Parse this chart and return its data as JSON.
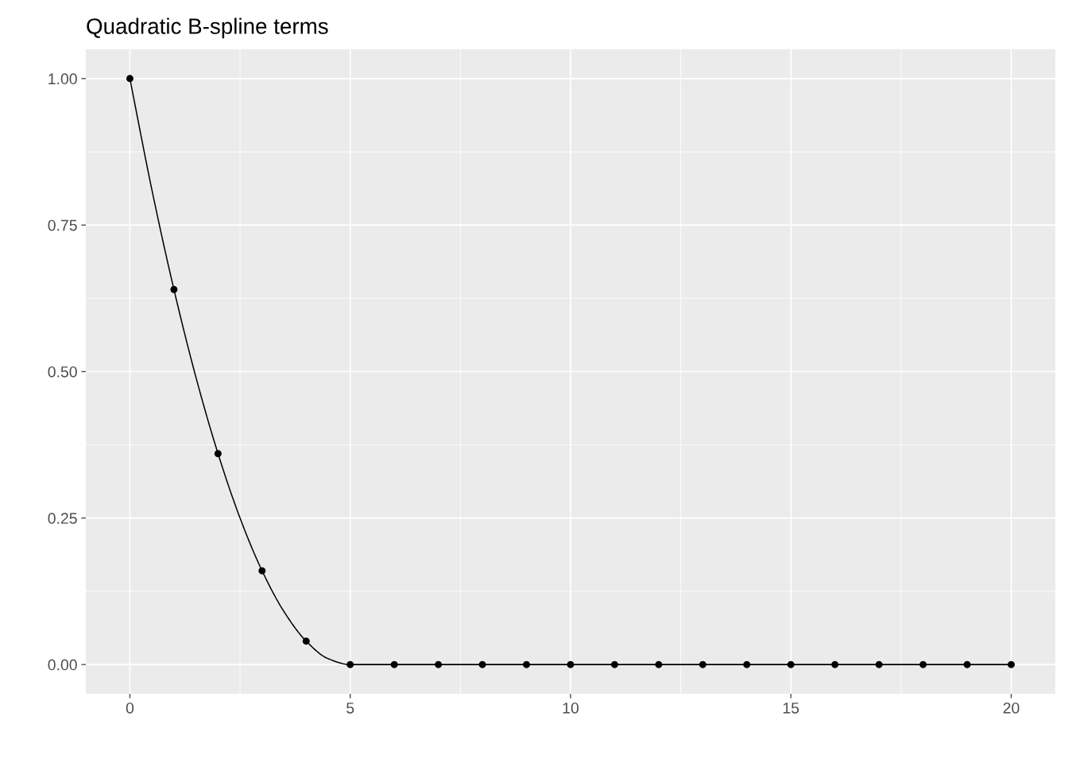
{
  "chart_data": {
    "type": "scatter",
    "title": "Quadratic B-spline terms",
    "series": [
      {
        "type": "line",
        "marker": "none",
        "color": "#000000",
        "x": [
          0,
          0.5,
          1,
          1.5,
          2,
          2.5,
          3,
          3.5,
          4,
          4.5,
          5,
          20
        ],
        "values": [
          1.0,
          0.81,
          0.64,
          0.49,
          0.36,
          0.25,
          0.16,
          0.09,
          0.04,
          0.01,
          0.0,
          0.0
        ]
      },
      {
        "marker": "circle",
        "color": "#000000",
        "x": [
          0,
          1,
          2,
          3,
          4,
          5,
          6,
          7,
          8,
          9,
          10,
          11,
          12,
          13,
          14,
          15,
          16,
          17,
          18,
          19,
          20
        ],
        "values": [
          1.0,
          0.64,
          0.36,
          0.16,
          0.04,
          0,
          0,
          0,
          0,
          0,
          0,
          0,
          0,
          0,
          0,
          0,
          0,
          0,
          0,
          0,
          0
        ]
      }
    ],
    "xlim": [
      -1,
      21
    ],
    "xticks": [
      0,
      5,
      10,
      15,
      20
    ],
    "ylim": [
      -0.05,
      1.05
    ],
    "yticks": [
      {
        "value": 0,
        "label": "0.00"
      },
      {
        "value": 0.25,
        "label": "0.25"
      },
      {
        "value": 0.5,
        "label": "0.50"
      },
      {
        "value": 0.75,
        "label": "0.75"
      },
      {
        "value": 1,
        "label": "1.00"
      }
    ],
    "grid": true
  }
}
